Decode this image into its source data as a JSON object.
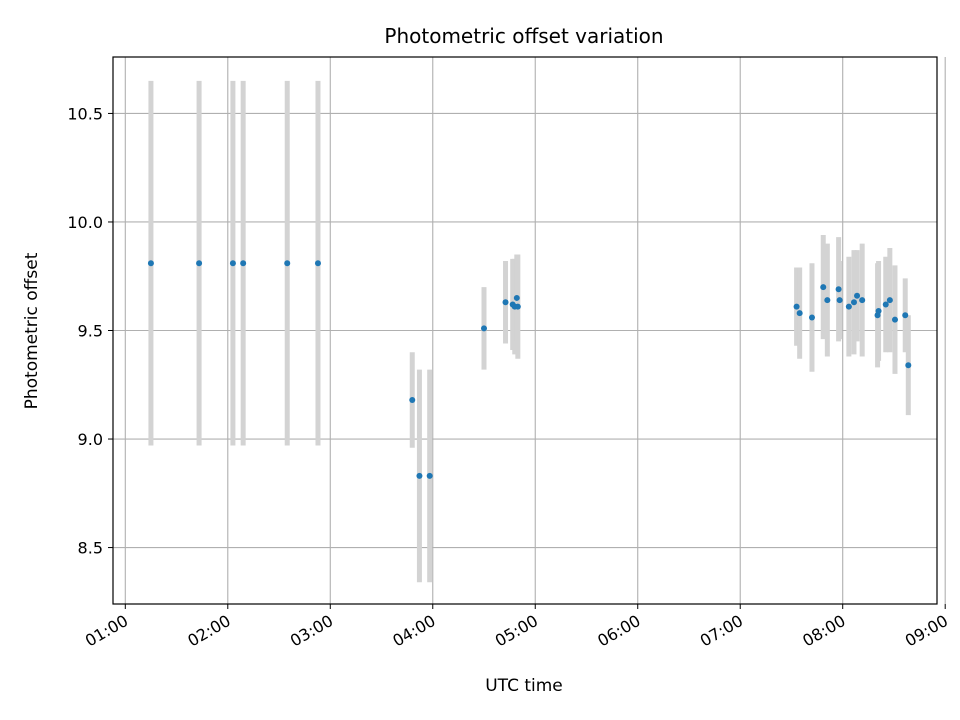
{
  "chart_data": {
    "type": "scatter",
    "title": "Photometric offset variation",
    "xlabel": "UTC time",
    "ylabel": "Photometric offset",
    "x_units": "hours (UTC)",
    "xlim": [
      0.88,
      8.92
    ],
    "ylim": [
      8.24,
      10.76
    ],
    "grid": true,
    "x_ticks": [
      1,
      2,
      3,
      4,
      5,
      6,
      7,
      8,
      9
    ],
    "x_tick_labels": [
      "01:00",
      "02:00",
      "03:00",
      "04:00",
      "05:00",
      "06:00",
      "07:00",
      "08:00",
      "09:00"
    ],
    "y_ticks": [
      8.5,
      9.0,
      9.5,
      10.0,
      10.5
    ],
    "y_tick_labels": [
      "8.5",
      "9.0",
      "9.5",
      "10.0",
      "10.5"
    ],
    "colors": {
      "point": "#1f77b4",
      "errorbar": "#d3d3d3",
      "grid": "#b0b0b0"
    },
    "points": [
      {
        "x": 1.25,
        "y": 9.81,
        "err": 0.84
      },
      {
        "x": 1.72,
        "y": 9.81,
        "err": 0.84
      },
      {
        "x": 2.05,
        "y": 9.81,
        "err": 0.84
      },
      {
        "x": 2.15,
        "y": 9.81,
        "err": 0.84
      },
      {
        "x": 2.58,
        "y": 9.81,
        "err": 0.84
      },
      {
        "x": 2.88,
        "y": 9.81,
        "err": 0.84
      },
      {
        "x": 3.8,
        "y": 9.18,
        "err": 0.22
      },
      {
        "x": 3.87,
        "y": 8.83,
        "err": 0.49
      },
      {
        "x": 3.97,
        "y": 8.83,
        "err": 0.49
      },
      {
        "x": 4.5,
        "y": 9.51,
        "err": 0.19
      },
      {
        "x": 4.71,
        "y": 9.63,
        "err": 0.19
      },
      {
        "x": 4.78,
        "y": 9.62,
        "err": 0.21
      },
      {
        "x": 4.8,
        "y": 9.61,
        "err": 0.22
      },
      {
        "x": 4.82,
        "y": 9.65,
        "err": 0.2
      },
      {
        "x": 4.83,
        "y": 9.61,
        "err": 0.24
      },
      {
        "x": 7.55,
        "y": 9.61,
        "err": 0.18
      },
      {
        "x": 7.58,
        "y": 9.58,
        "err": 0.21
      },
      {
        "x": 7.7,
        "y": 9.56,
        "err": 0.25
      },
      {
        "x": 7.81,
        "y": 9.7,
        "err": 0.24
      },
      {
        "x": 7.85,
        "y": 9.64,
        "err": 0.26
      },
      {
        "x": 7.96,
        "y": 9.69,
        "err": 0.24
      },
      {
        "x": 7.97,
        "y": 9.64,
        "err": 0.18
      },
      {
        "x": 8.06,
        "y": 9.61,
        "err": 0.23
      },
      {
        "x": 8.11,
        "y": 9.63,
        "err": 0.24
      },
      {
        "x": 8.14,
        "y": 9.66,
        "err": 0.21
      },
      {
        "x": 8.19,
        "y": 9.64,
        "err": 0.26
      },
      {
        "x": 8.34,
        "y": 9.57,
        "err": 0.24
      },
      {
        "x": 8.35,
        "y": 9.59,
        "err": 0.23
      },
      {
        "x": 8.42,
        "y": 9.62,
        "err": 0.22
      },
      {
        "x": 8.46,
        "y": 9.64,
        "err": 0.24
      },
      {
        "x": 8.51,
        "y": 9.55,
        "err": 0.25
      },
      {
        "x": 8.61,
        "y": 9.57,
        "err": 0.17
      },
      {
        "x": 8.64,
        "y": 9.34,
        "err": 0.23
      }
    ]
  }
}
